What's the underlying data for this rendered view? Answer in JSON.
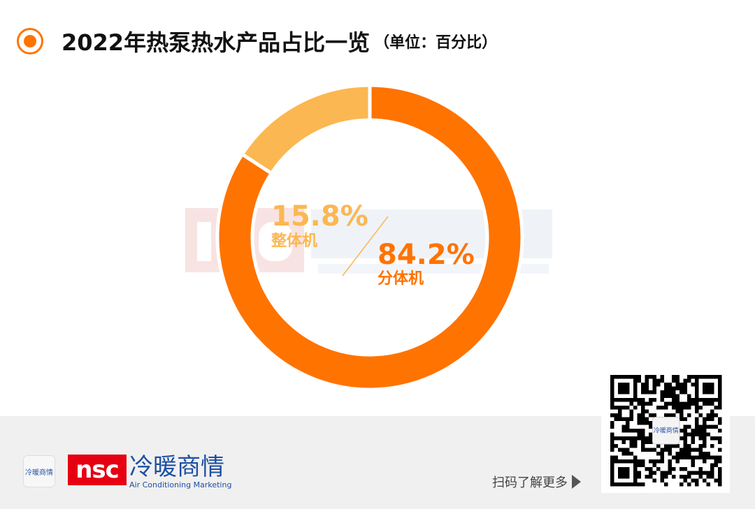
{
  "header": {
    "title": "2022年热泵热水产品占比一览",
    "unit": "（单位：百分比）",
    "bullet_icon": "radio-circle-icon"
  },
  "chart_data": {
    "type": "pie",
    "donut": true,
    "categories": [
      "分体机",
      "整体机"
    ],
    "values": [
      84.2,
      15.8
    ],
    "labels": [
      "84.2%",
      "15.8%"
    ],
    "colors": [
      "#FF7300",
      "#FBB751"
    ],
    "start": "top",
    "direction": "clockwise"
  },
  "watermark": {
    "text_cn": "冷暖商情",
    "text_en": "Air Conditioning Marketing"
  },
  "footer": {
    "small_logo": "冷暖商情",
    "brand_abbr": "nsc",
    "brand_cn": "冷暖商情",
    "brand_en": "Air Conditioning Marketing",
    "scan_text": "扫码了解更多",
    "qr_center": "冷暖商情"
  }
}
